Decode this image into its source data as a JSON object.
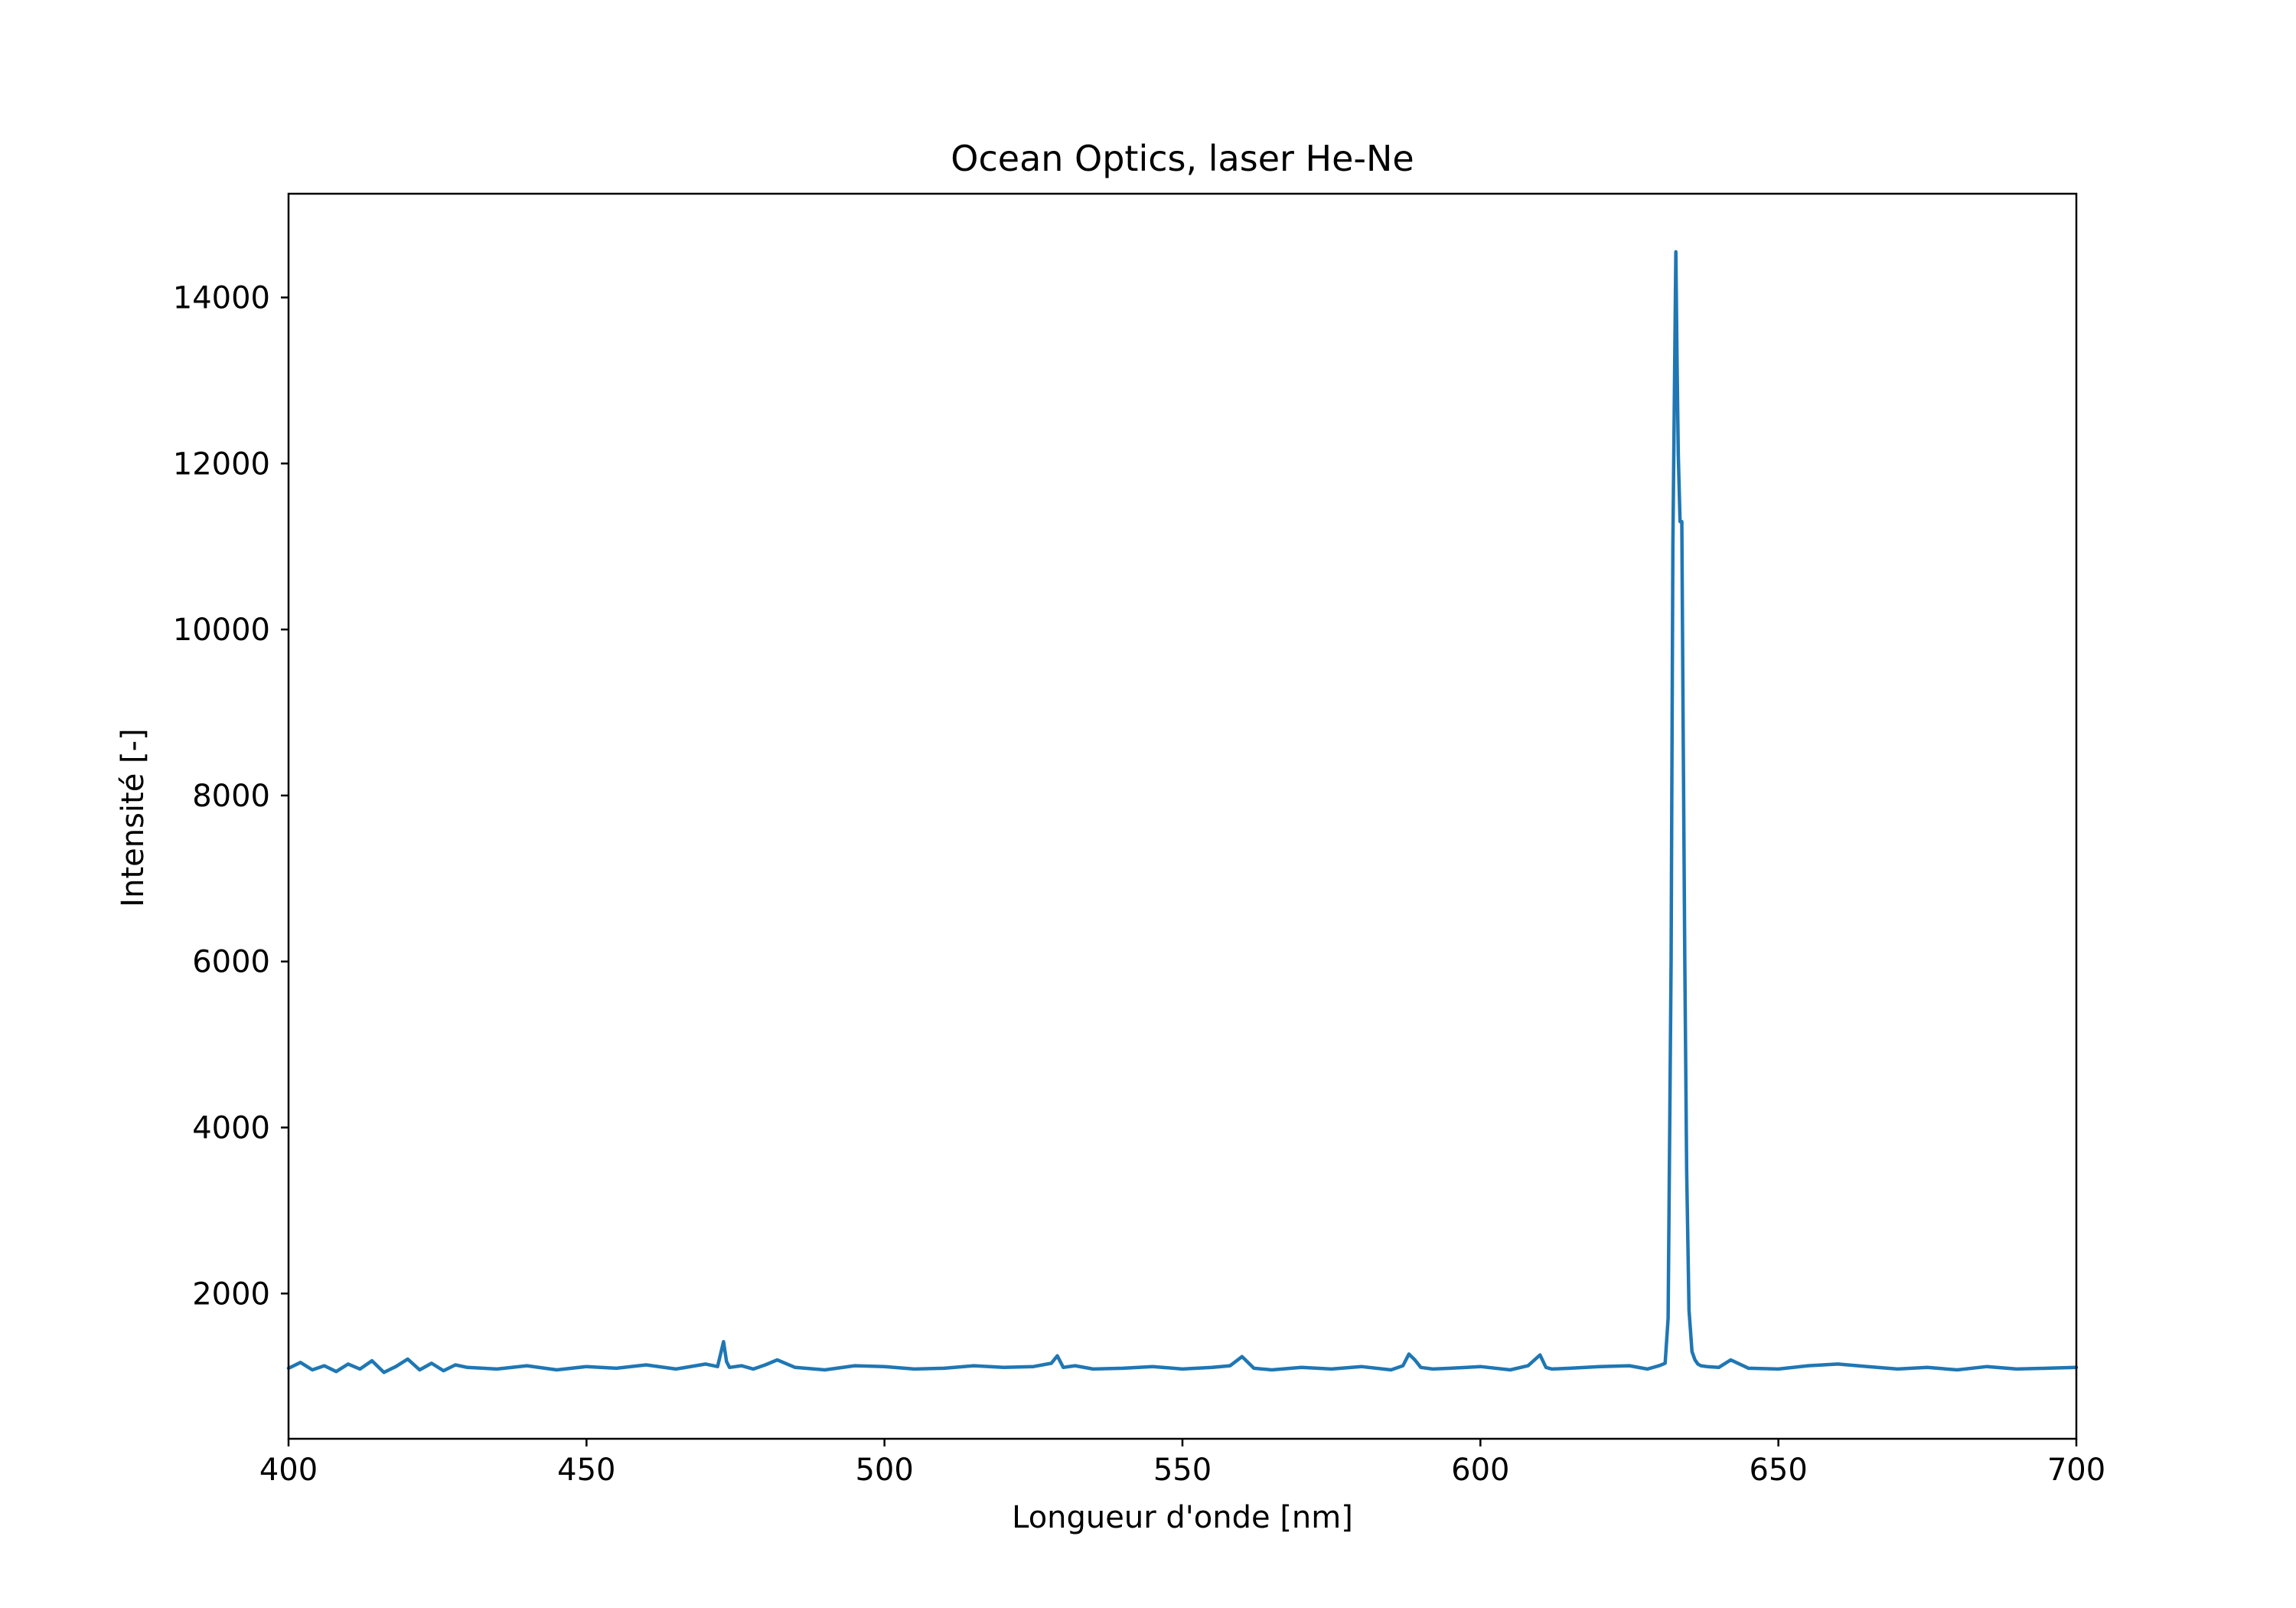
{
  "chart_data": {
    "type": "line",
    "title": "Ocean Optics, laser He-Ne",
    "xlabel": "Longueur d'onde [nm]",
    "ylabel": "Intensité [-]",
    "xlim": [
      400,
      700
    ],
    "ylim": [
      250,
      15250
    ],
    "xticks": [
      400,
      450,
      500,
      550,
      600,
      650,
      700
    ],
    "xtick_labels": [
      "400",
      "450",
      "500",
      "550",
      "600",
      "650",
      "700"
    ],
    "yticks": [
      2000,
      4000,
      6000,
      8000,
      10000,
      12000,
      14000
    ],
    "ytick_labels": [
      "2000",
      "4000",
      "6000",
      "8000",
      "10000",
      "12000",
      "14000"
    ],
    "grid": false,
    "line_color": "#1f77b4",
    "series": [
      {
        "x": [
          400,
          402,
          404,
          406,
          408,
          410,
          412,
          414,
          416,
          418,
          420,
          422,
          424,
          426,
          428,
          430,
          435,
          440,
          445,
          450,
          455,
          460,
          465,
          470,
          472,
          473,
          473.5,
          474,
          476,
          478,
          480,
          482,
          485,
          490,
          495,
          500,
          505,
          510,
          515,
          520,
          525,
          528,
          529,
          530,
          532,
          535,
          540,
          545,
          550,
          555,
          558,
          560,
          562,
          565,
          570,
          575,
          580,
          585,
          587,
          588,
          589,
          590,
          592,
          595,
          600,
          605,
          608,
          610,
          611,
          612,
          615,
          620,
          625,
          628,
          630,
          631,
          631.5,
          632,
          632.3,
          632.6,
          632.8,
          633.0,
          633.2,
          633.5,
          633.8,
          634.0,
          634.3,
          634.6,
          635.0,
          635.5,
          636.0,
          636.5,
          637.0,
          638,
          640,
          642,
          645,
          650,
          655,
          660,
          665,
          670,
          675,
          680,
          685,
          690,
          695,
          700
        ],
        "y": [
          1100,
          1170,
          1080,
          1130,
          1060,
          1150,
          1090,
          1190,
          1050,
          1120,
          1210,
          1080,
          1160,
          1070,
          1140,
          1110,
          1090,
          1130,
          1080,
          1120,
          1100,
          1140,
          1090,
          1150,
          1120,
          1420,
          1180,
          1110,
          1130,
          1090,
          1140,
          1200,
          1110,
          1080,
          1130,
          1120,
          1090,
          1100,
          1130,
          1110,
          1120,
          1160,
          1250,
          1110,
          1130,
          1090,
          1100,
          1120,
          1090,
          1110,
          1130,
          1240,
          1100,
          1080,
          1110,
          1090,
          1120,
          1080,
          1130,
          1270,
          1200,
          1110,
          1090,
          1100,
          1120,
          1080,
          1130,
          1260,
          1110,
          1090,
          1100,
          1120,
          1130,
          1090,
          1130,
          1160,
          1700,
          6000,
          11000,
          13200,
          14550,
          13200,
          12100,
          11300,
          11300,
          9000,
          6000,
          3500,
          1800,
          1300,
          1200,
          1150,
          1130,
          1120,
          1110,
          1200,
          1100,
          1090,
          1130,
          1150,
          1120,
          1090,
          1110,
          1080,
          1120,
          1090,
          1100,
          1110
        ]
      }
    ]
  }
}
